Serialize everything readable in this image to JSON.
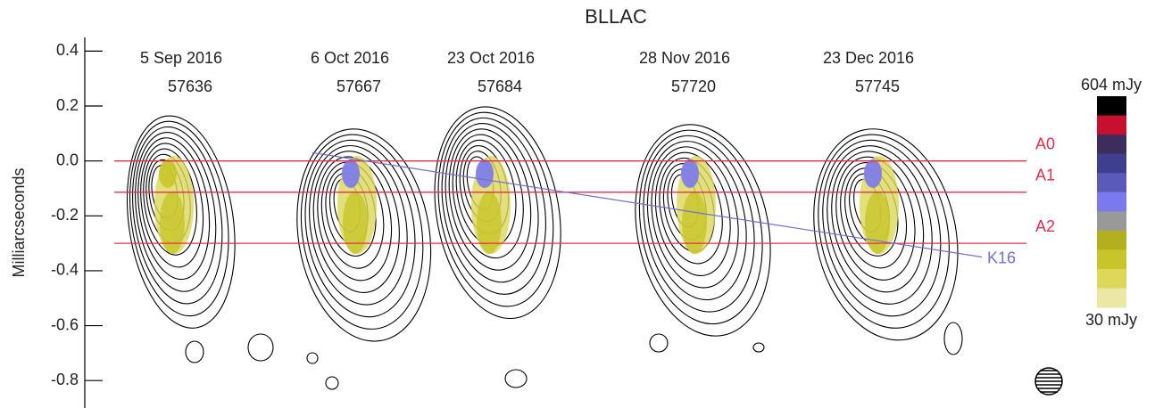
{
  "chart_data": {
    "type": "vlbi-image",
    "title": "BLLAC",
    "ylabel": "Milliarcseconds",
    "ylim": [
      -0.9,
      0.45
    ],
    "yticks": [
      {
        "value": 0.4,
        "label": "0.4"
      },
      {
        "value": 0.2,
        "label": "0.2"
      },
      {
        "value": 0.0,
        "label": "0.0"
      },
      {
        "value": -0.2,
        "label": "-0.2"
      },
      {
        "value": -0.4,
        "label": "-0.4"
      },
      {
        "value": -0.6,
        "label": "-0.6"
      },
      {
        "value": -0.8,
        "label": "-0.8"
      }
    ],
    "epochs": [
      "5 Sep 2016",
      "6 Oct 2016",
      "23 Oct 2016",
      "28 Nov 2016",
      "23 Dec 2016"
    ],
    "mjd": [
      57636,
      57667,
      57684,
      57720,
      57745
    ],
    "components": [
      {
        "name": "A0",
        "color": "#e0304a",
        "y": 0.0
      },
      {
        "name": "A1",
        "color": "#e0304a",
        "y": -0.114
      },
      {
        "name": "A2",
        "color": "#e0304a",
        "y": -0.3
      }
    ],
    "trajectory": {
      "name": "K16",
      "color": "#7070d0",
      "y": [
        0.03,
        -0.35
      ]
    },
    "colorbar": {
      "max": {
        "value": 604,
        "label": "604 mJy"
      },
      "min": {
        "value": 30,
        "label": "30 mJy"
      },
      "colors": [
        "#000000",
        "#c8102e",
        "#3d2d5c",
        "#3f3f8f",
        "#5a5ab8",
        "#7a7aee",
        "#999999",
        "#b3b020",
        "#c8c52a",
        "#dcd85a",
        "#ebe8a5"
      ]
    }
  }
}
